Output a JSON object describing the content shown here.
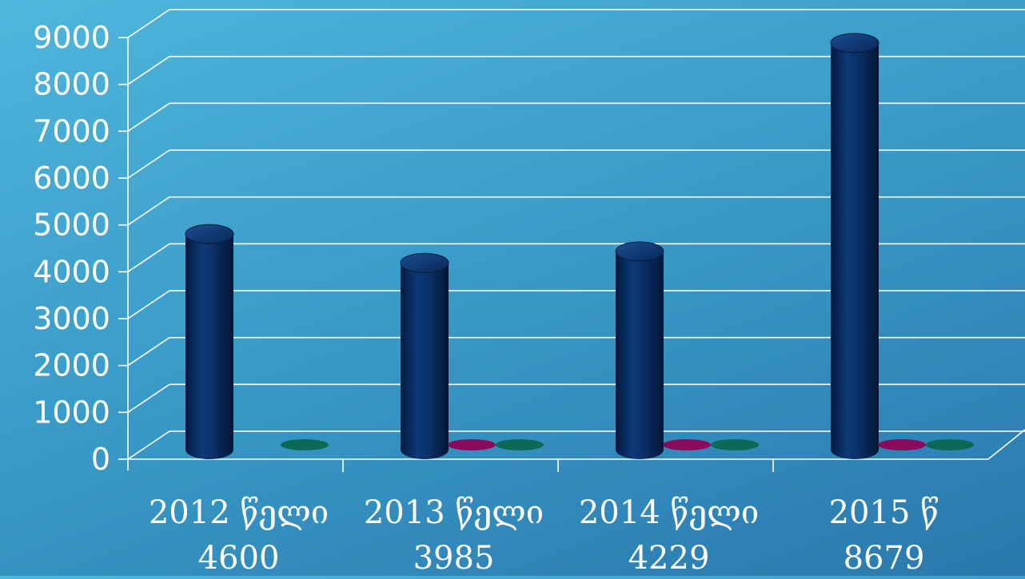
{
  "chart_data": {
    "type": "bar",
    "title": "",
    "xlabel": "",
    "ylabel": "",
    "ylim": [
      0,
      9000
    ],
    "yticks": [
      0,
      1000,
      2000,
      3000,
      4000,
      5000,
      6000,
      7000,
      8000,
      9000
    ],
    "categories": [
      "2012 წელი",
      "2013 წელი",
      "2014 წელი",
      "2015 წ"
    ],
    "category_values_labels": [
      "4600",
      "3985",
      "4229",
      "8679"
    ],
    "grid": true,
    "legend": "none",
    "style": "3d-cylinder",
    "series": [
      {
        "values": [
          4600,
          3985,
          4229,
          8679
        ],
        "color": "#0b2f66"
      },
      {
        "values": [
          null,
          0,
          0,
          0
        ],
        "color": "#8a0a5c"
      },
      {
        "values": [
          0,
          0,
          0,
          0
        ],
        "color": "#0b6a55"
      }
    ]
  }
}
